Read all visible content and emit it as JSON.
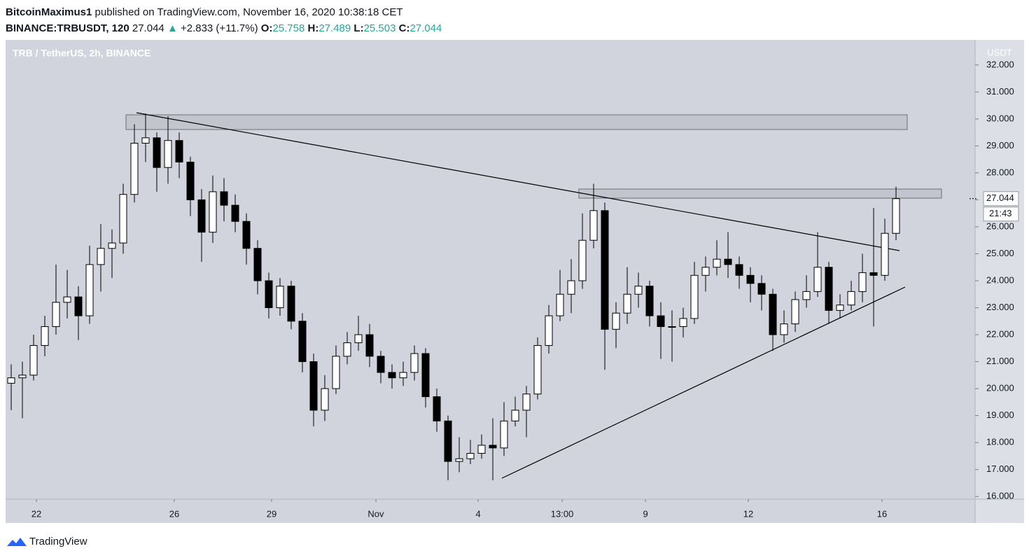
{
  "header": {
    "author": "BitcoinMaximus1",
    "published": " published on TradingView.com, November 16, 2020 10:38:18 CET",
    "symbol": "BINANCE:TRBUSDT, 120",
    "arrow": "▲",
    "change": "+2.833 (+11.7%)",
    "o_label": "O:",
    "h_label": "H:",
    "l_label": "L:",
    "c_label": "C:"
  },
  "chart_data": {
    "type": "candlestick",
    "title": "TRB / TetherUS, 2h, BINANCE",
    "x": [
      0.5,
      1.5,
      2.5,
      3.5,
      4.5,
      5.5,
      6.5,
      7.5,
      8.5,
      9.5,
      10.5,
      11.5,
      12.5,
      13.5,
      14.5,
      15.5,
      16.5,
      17.5,
      18.5,
      19.5,
      20.5,
      21.5,
      22.5,
      23.5,
      24.5,
      25.5,
      26.5,
      27.5,
      28.5,
      29.5,
      30.5,
      31.5,
      32.5,
      33.5,
      34.5,
      35.5,
      36.5,
      37.5,
      38.5,
      39.5,
      40.5,
      41.5,
      42.5,
      43.5,
      44.5,
      45.5,
      46.5,
      47.5,
      48.5,
      49.5,
      50.5,
      51.5,
      52.5,
      53.5,
      54.5,
      55.5,
      56.5,
      57.5,
      58.5,
      59.5,
      60.5,
      61.5,
      62.5,
      63.5,
      64.5,
      65.5,
      66.5,
      67.5,
      68.5,
      69.5,
      70.5,
      71.5,
      72.5,
      73.5,
      74.5,
      75.5,
      76.5,
      77.5,
      78.5,
      79.5
    ],
    "open": [
      20.2,
      20.4,
      20.5,
      21.6,
      22.3,
      23.2,
      23.4,
      22.7,
      24.6,
      25.2,
      25.4,
      27.2,
      29.1,
      29.3,
      28.2,
      29.2,
      28.4,
      27.0,
      25.8,
      27.3,
      26.8,
      26.2,
      25.2,
      24.0,
      23.0,
      23.8,
      22.5,
      21.0,
      19.2,
      20.0,
      21.2,
      21.7,
      22.0,
      21.2,
      20.6,
      20.4,
      20.6,
      21.3,
      19.7,
      18.8,
      17.3,
      17.4,
      17.6,
      17.9,
      17.8,
      18.8,
      19.2,
      19.8,
      21.6,
      22.7,
      23.5,
      24.0,
      25.5,
      26.6,
      22.2,
      22.8,
      23.5,
      23.8,
      22.7,
      22.3,
      22.3,
      22.6,
      24.2,
      24.5,
      24.8,
      24.6,
      24.2,
      23.9,
      23.5,
      22.0,
      22.4,
      23.3,
      23.6,
      24.5,
      22.9,
      23.1,
      23.6,
      24.3,
      24.2,
      25.758
    ],
    "high": [
      20.9,
      21.0,
      22.0,
      22.7,
      24.6,
      24.4,
      23.8,
      25.3,
      26.1,
      25.9,
      27.6,
      29.8,
      30.2,
      29.5,
      30.1,
      29.5,
      28.6,
      27.4,
      27.9,
      27.8,
      27.2,
      26.5,
      25.5,
      24.3,
      24.1,
      24.0,
      22.8,
      21.3,
      20.5,
      21.6,
      22.1,
      22.7,
      22.4,
      21.4,
      20.9,
      21.0,
      21.6,
      21.5,
      20.0,
      19.0,
      18.2,
      18.1,
      18.3,
      18.9,
      19.5,
      19.7,
      20.1,
      21.9,
      23.1,
      24.4,
      24.8,
      26.5,
      27.6,
      26.9,
      23.2,
      24.5,
      24.3,
      24.0,
      23.2,
      22.9,
      23.0,
      24.7,
      24.9,
      25.5,
      25.8,
      24.9,
      24.5,
      24.2,
      23.7,
      22.9,
      23.6,
      24.2,
      25.8,
      24.7,
      23.5,
      24.0,
      25.0,
      26.7,
      26.3,
      27.489
    ],
    "low": [
      19.2,
      18.9,
      20.3,
      21.2,
      22.0,
      22.6,
      21.8,
      22.4,
      23.6,
      24.1,
      25.0,
      26.9,
      28.4,
      27.3,
      27.6,
      27.8,
      26.4,
      24.7,
      25.4,
      26.2,
      25.8,
      24.6,
      23.5,
      22.6,
      22.7,
      22.2,
      20.6,
      18.6,
      18.8,
      19.8,
      20.9,
      21.4,
      20.8,
      20.2,
      20.0,
      20.1,
      20.3,
      19.3,
      18.4,
      16.6,
      16.9,
      17.2,
      17.4,
      16.6,
      17.5,
      18.6,
      18.2,
      19.6,
      21.3,
      22.5,
      22.8,
      23.7,
      25.2,
      20.7,
      21.5,
      22.4,
      23.0,
      22.3,
      21.1,
      21.0,
      21.9,
      22.4,
      23.6,
      24.2,
      24.1,
      23.7,
      23.2,
      22.9,
      21.4,
      21.7,
      22.1,
      23.0,
      23.4,
      22.4,
      22.6,
      22.9,
      23.2,
      22.3,
      24.0,
      25.503
    ],
    "close": [
      20.4,
      20.5,
      21.6,
      22.3,
      23.2,
      23.4,
      22.7,
      24.6,
      25.2,
      25.4,
      27.2,
      29.1,
      29.3,
      28.2,
      29.2,
      28.4,
      27.0,
      25.8,
      27.3,
      26.8,
      26.2,
      25.2,
      24.0,
      23.0,
      23.8,
      22.5,
      21.0,
      19.2,
      20.0,
      21.2,
      21.7,
      22.0,
      21.2,
      20.6,
      20.4,
      20.6,
      21.3,
      19.7,
      18.8,
      17.3,
      17.4,
      17.6,
      17.9,
      17.8,
      18.8,
      19.2,
      19.8,
      21.6,
      22.7,
      23.5,
      24.0,
      25.5,
      26.6,
      22.2,
      22.8,
      23.5,
      23.8,
      22.7,
      22.3,
      22.3,
      22.6,
      24.2,
      24.5,
      24.8,
      24.6,
      24.2,
      23.9,
      23.5,
      22.0,
      22.4,
      23.3,
      23.6,
      24.5,
      22.9,
      23.1,
      23.6,
      24.3,
      24.2,
      25.758,
      27.044
    ],
    "up_color": "#ffffff",
    "down_color": "#000000",
    "outline_color": "#000000",
    "xlim": [
      0,
      86.56
    ],
    "xticks": [
      {
        "value": 2.75,
        "label": "22"
      },
      {
        "value": 15.06,
        "label": "26"
      },
      {
        "value": 23.75,
        "label": "29"
      },
      {
        "value": 33.06,
        "label": "Nov"
      },
      {
        "value": 42.19,
        "label": "4"
      },
      {
        "value": 49.69,
        "label": "13:00"
      },
      {
        "value": 57.13,
        "label": "9"
      },
      {
        "value": 66.31,
        "label": "12"
      },
      {
        "value": 78.25,
        "label": "16"
      }
    ],
    "ylim": [
      15.9,
      32.93
    ],
    "yticks": [
      {
        "value": 16,
        "label": "16.000"
      },
      {
        "value": 17,
        "label": "17.000"
      },
      {
        "value": 18,
        "label": "18.000"
      },
      {
        "value": 19,
        "label": "19.000"
      },
      {
        "value": 20,
        "label": "20.000"
      },
      {
        "value": 21,
        "label": "21.000"
      },
      {
        "value": 22,
        "label": "22.000"
      },
      {
        "value": 23,
        "label": "23.000"
      },
      {
        "value": 24,
        "label": "24.000"
      },
      {
        "value": 25,
        "label": "25.000"
      },
      {
        "value": 26,
        "label": "26.000"
      },
      {
        "value": 27,
        "label": "27.000"
      },
      {
        "value": 28,
        "label": "28.000"
      },
      {
        "value": 29,
        "label": "29.000"
      },
      {
        "value": 30,
        "label": "30.000"
      },
      {
        "value": 31,
        "label": "31.000"
      },
      {
        "value": 32,
        "label": "32.000"
      }
    ],
    "y_axis_label": "USDT",
    "countdown": "21:43",
    "grid": false
  },
  "footer": {
    "brand": "TradingView"
  }
}
